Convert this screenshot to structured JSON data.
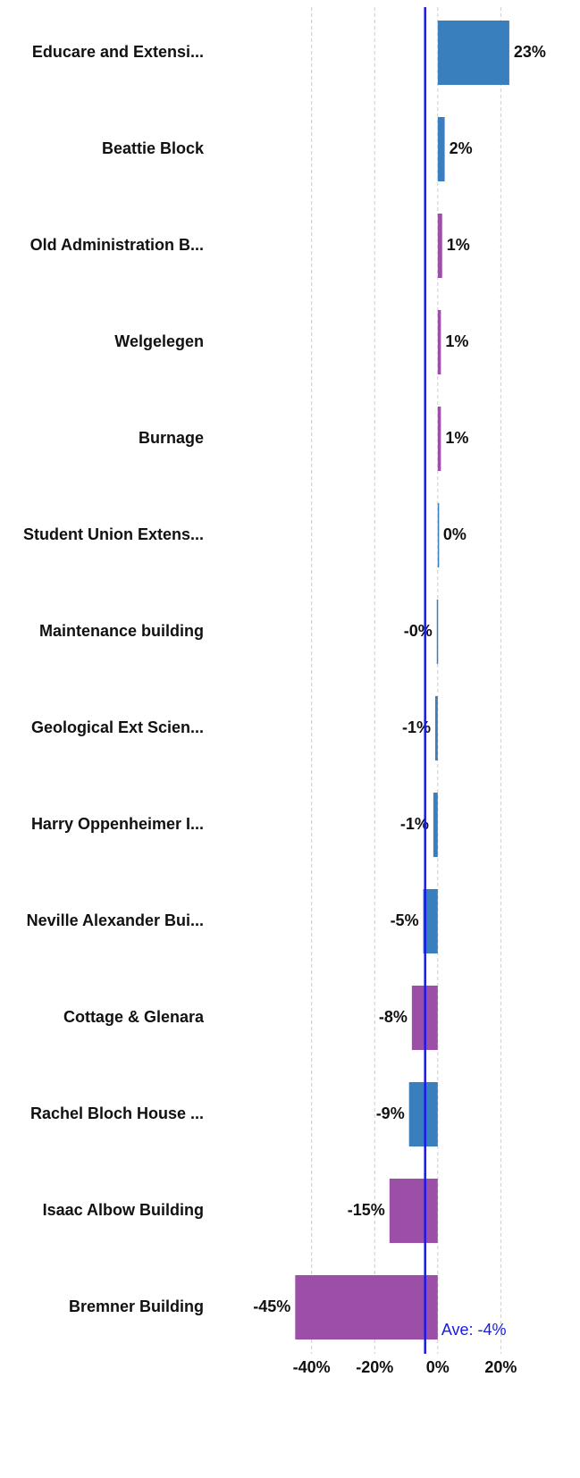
{
  "chart_data": {
    "type": "bar",
    "orientation": "horizontal",
    "categories": [
      "Educare and Extensi...",
      "Beattie Block",
      "Old Administration B...",
      "Welgelegen",
      "Burnage",
      "Student Union Extens...",
      "Maintenance building",
      "Geological Ext Scien...",
      "Harry Oppenheimer I...",
      "Neville Alexander Bui...",
      "Cottage & Glenara",
      "Rachel Bloch House ...",
      "Isaac Albow Building",
      "Bremner Building"
    ],
    "values": [
      22.7,
      2.2,
      1.4,
      1.0,
      1.0,
      0.3,
      -0.3,
      -0.8,
      -1.4,
      -4.6,
      -8.2,
      -9.1,
      -15.3,
      -45.2
    ],
    "value_labels": [
      "23%",
      "2%",
      "1%",
      "1%",
      "1%",
      "0%",
      "-0%",
      "-1%",
      "-1%",
      "-5%",
      "-8%",
      "-9%",
      "-15%",
      "-45%"
    ],
    "colors": [
      "#3a7fbd",
      "#3a7fbd",
      "#9b4fa6",
      "#9b4fa6",
      "#9b4fa6",
      "#3a7fbd",
      "#3a7fbd",
      "#3a7fbd",
      "#3a7fbd",
      "#3a7fbd",
      "#9b4fa6",
      "#3a7fbd",
      "#9b4fa6",
      "#9b4fa6"
    ],
    "xlim": [
      -46,
      24
    ],
    "xticks": [
      {
        "value": -40,
        "label": "-40%"
      },
      {
        "value": -20,
        "label": "-20%"
      },
      {
        "value": 0,
        "label": "0%"
      },
      {
        "value": 20,
        "label": "20%"
      }
    ],
    "grid": true,
    "average": {
      "value": -4,
      "label": "Ave: -4%",
      "color": "#1a1ae6"
    }
  }
}
